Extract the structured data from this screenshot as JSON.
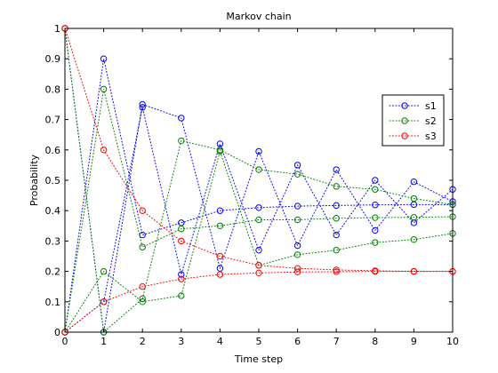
{
  "chart_data": {
    "type": "line",
    "title": "Markov chain",
    "xlabel": "Time step",
    "ylabel": "Probability",
    "xlim": [
      0,
      10
    ],
    "ylim": [
      0,
      1
    ],
    "xticks": [
      "0",
      "1",
      "2",
      "3",
      "4",
      "5",
      "6",
      "7",
      "8",
      "9",
      "10"
    ],
    "yticks": [
      "0",
      "0.1",
      "0.2",
      "0.3",
      "0.4",
      "0.5",
      "0.6",
      "0.7",
      "0.8",
      "0.9",
      "1"
    ],
    "grid": false,
    "legend_position": "top-right",
    "line_style": "dotted",
    "marker": "open-circle",
    "series_groups": [
      {
        "name": "s1",
        "color": "#0000ff",
        "chains": [
          [
            0,
            0.9,
            0.32,
            0.36,
            0.4,
            0.41,
            0.415,
            0.417,
            0.419,
            0.42,
            0.42
          ],
          [
            0,
            0.1,
            0.74,
            0.19,
            0.62,
            0.27,
            0.55,
            0.32,
            0.5,
            0.36,
            0.47
          ],
          [
            1,
            0,
            0.75,
            0.705,
            0.21,
            0.595,
            0.285,
            0.535,
            0.335,
            0.495,
            0.43
          ]
        ]
      },
      {
        "name": "s2",
        "color": "#008000",
        "chains": [
          [
            0,
            0.8,
            0.28,
            0.34,
            0.35,
            0.37,
            0.37,
            0.375,
            0.377,
            0.378,
            0.38
          ],
          [
            1,
            0,
            0.11,
            0.63,
            0.6,
            0.535,
            0.52,
            0.48,
            0.47,
            0.44,
            0.42
          ],
          [
            0,
            0.2,
            0.1,
            0.12,
            0.595,
            0.22,
            0.255,
            0.27,
            0.295,
            0.305,
            0.325
          ]
        ]
      },
      {
        "name": "s3",
        "color": "#ff0000",
        "chains": [
          [
            1,
            0.6,
            0.4,
            0.3,
            0.25,
            0.22,
            0.21,
            0.205,
            0.202,
            0.2,
            0.2
          ],
          [
            0,
            0.1,
            0.15,
            0.175,
            0.19,
            0.195,
            0.198,
            0.199,
            0.2,
            0.2,
            0.2
          ]
        ]
      }
    ]
  }
}
